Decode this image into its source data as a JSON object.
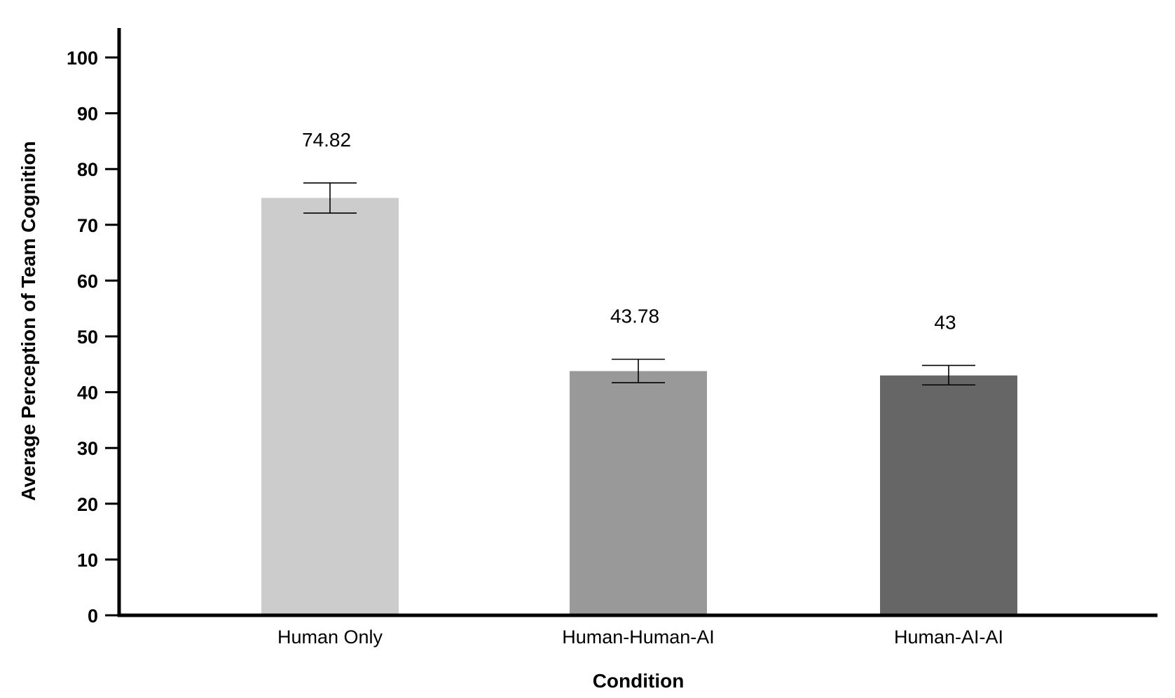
{
  "chart_data": {
    "type": "bar",
    "title": "",
    "xlabel": "Condition",
    "ylabel": "Average Perception of Team Cognition",
    "categories": [
      "Human Only",
      "Human-Human-AI",
      "Human-AI-AI"
    ],
    "values": [
      74.82,
      43.78,
      43
    ],
    "value_labels": [
      "74.82",
      "43.78",
      "43"
    ],
    "error_bars": {
      "upper": [
        77.5,
        45.9,
        44.8
      ],
      "lower": [
        72.1,
        41.7,
        41.3
      ]
    },
    "colors": [
      "#cccccc",
      "#999999",
      "#666666"
    ],
    "ylim": [
      0,
      100
    ],
    "yticks": [
      0,
      10,
      20,
      30,
      40,
      50,
      60,
      70,
      80,
      90,
      100
    ],
    "grid": false,
    "legend": "none"
  }
}
